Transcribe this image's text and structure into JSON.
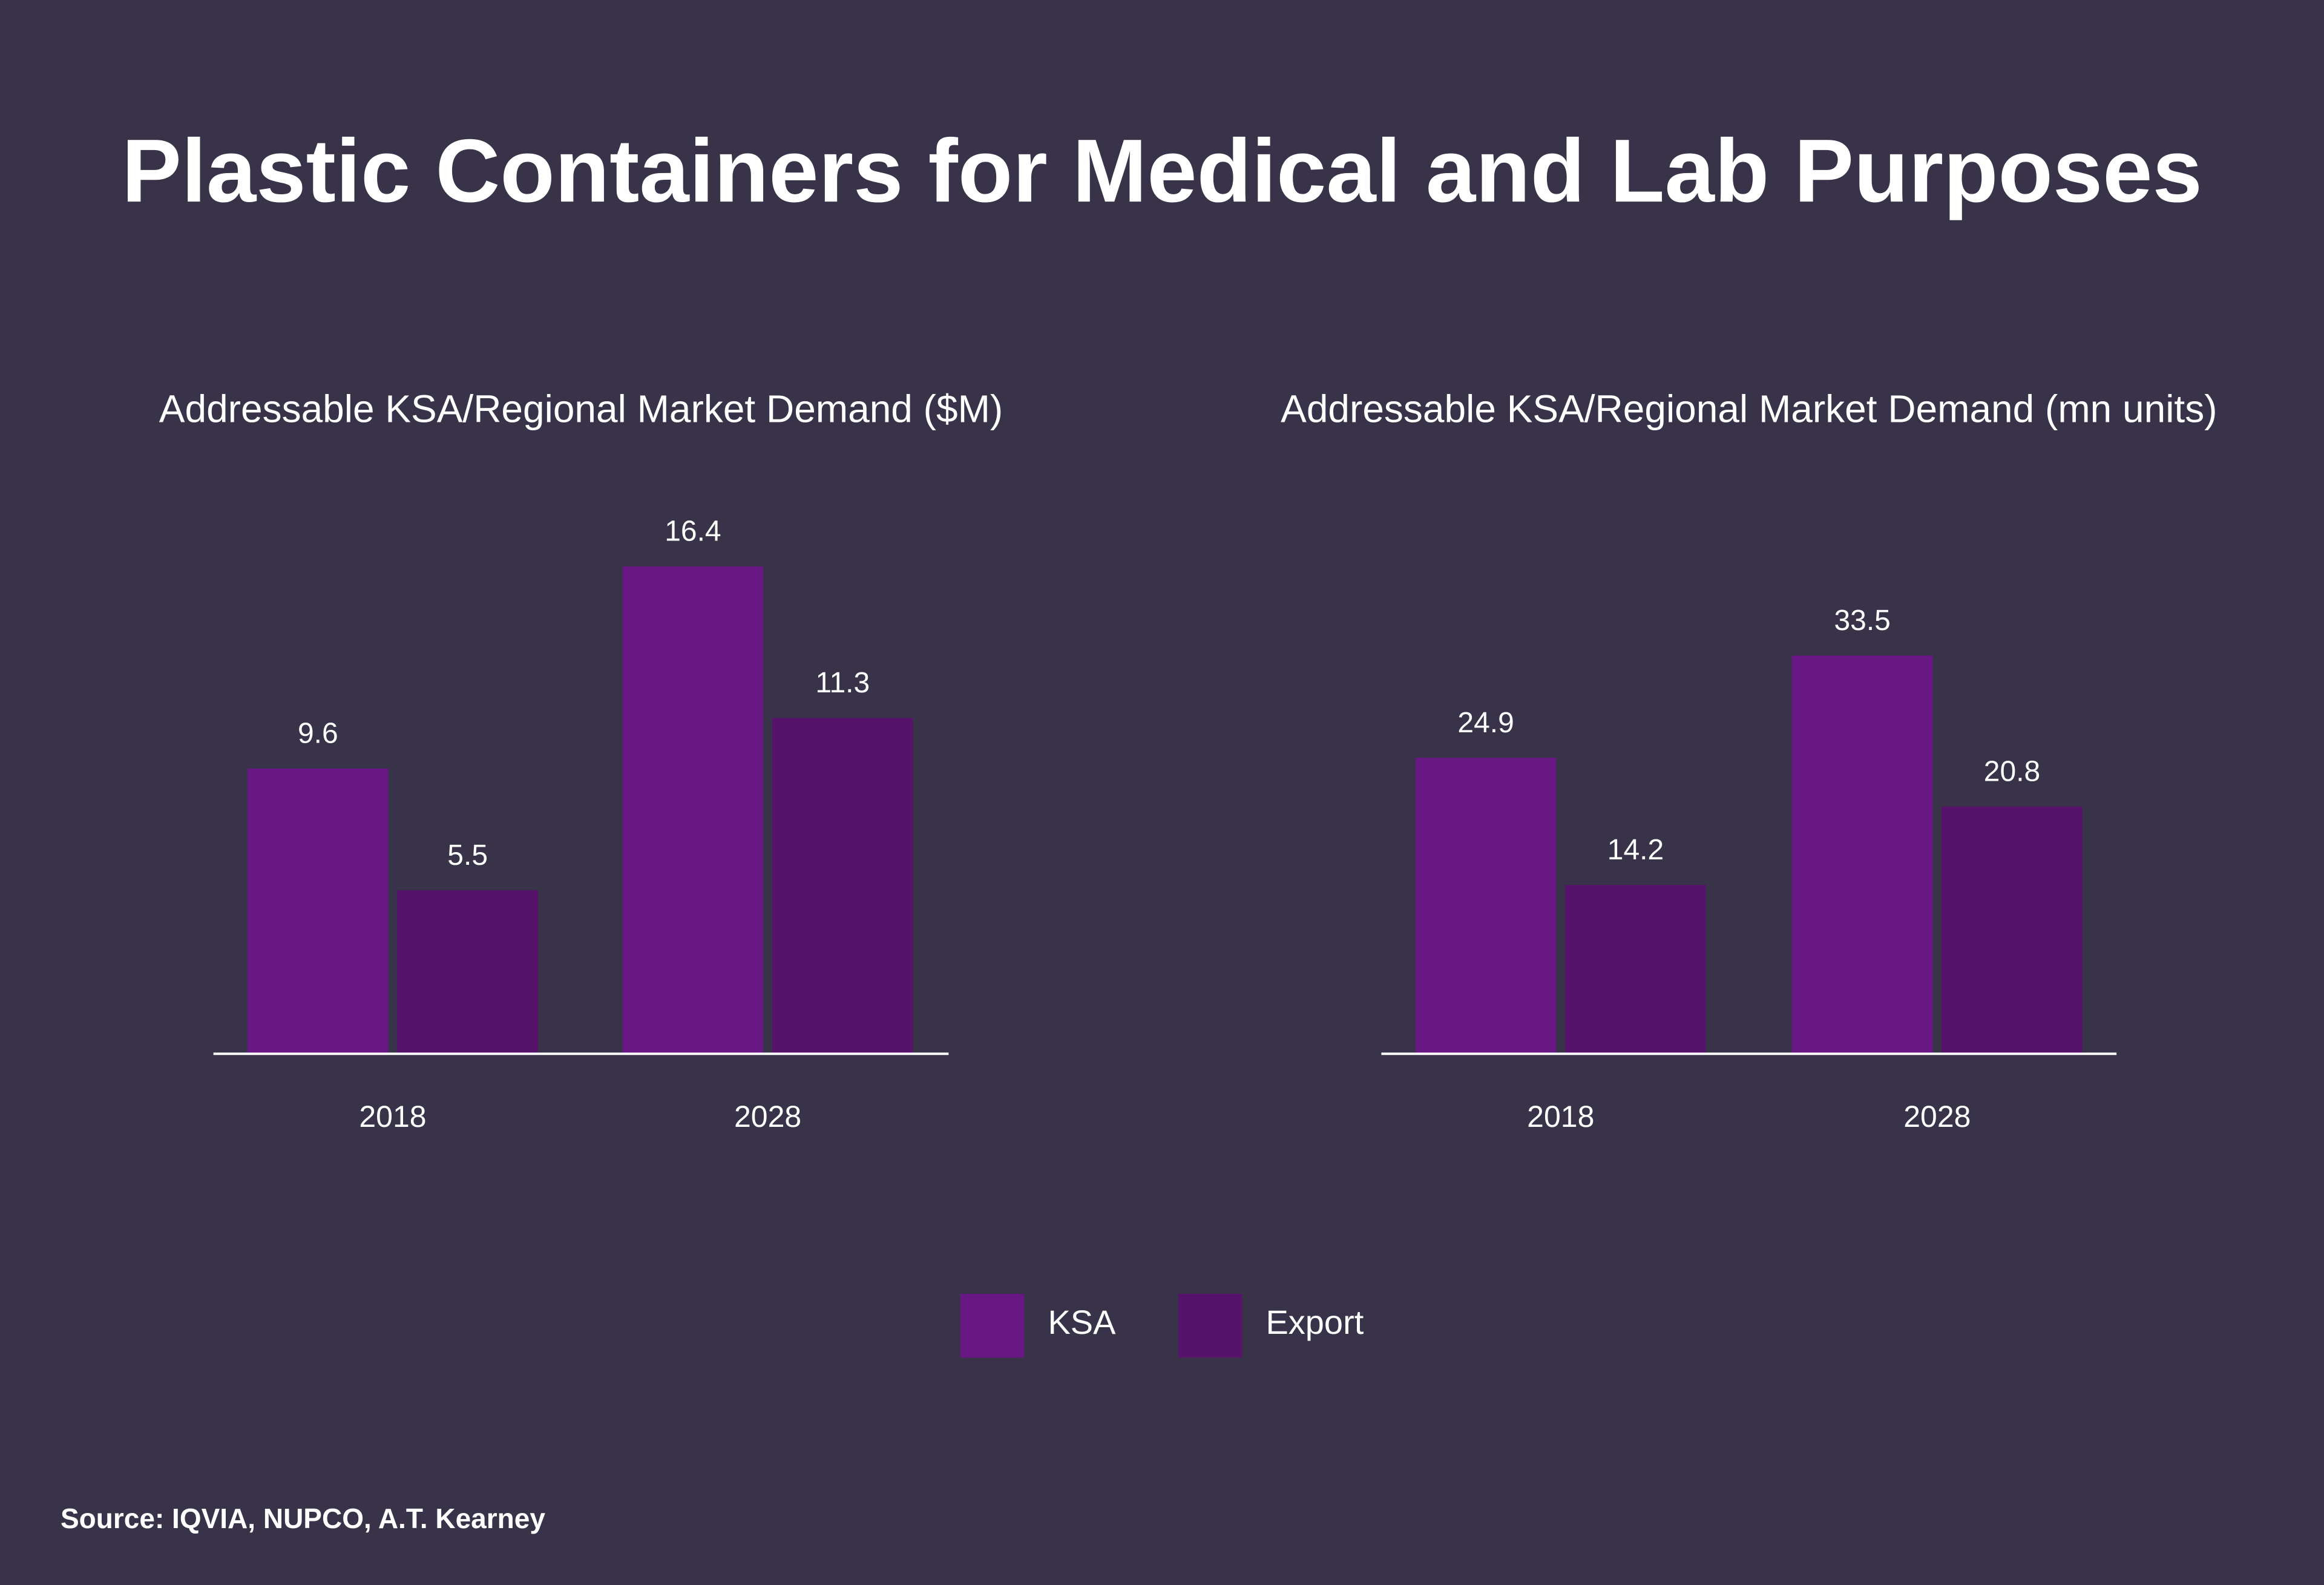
{
  "title": "Plastic Containers for Medical and Lab Purposes",
  "source": "Source: IQVIA, NUPCO, A.T. Kearney",
  "chart_data": [
    {
      "type": "bar",
      "title": "Addressable KSA/Regional Market Demand ($M)",
      "categories": [
        "2018",
        "2028"
      ],
      "series": [
        {
          "name": "KSA",
          "color": "#6a1786",
          "values": [
            9.6,
            16.4
          ]
        },
        {
          "name": "Export",
          "color": "#57126b",
          "values": [
            5.5,
            11.3
          ]
        }
      ],
      "ylim": [
        0,
        20
      ]
    },
    {
      "type": "bar",
      "title": "Addressable KSA/Regional Market Demand (mn units)",
      "categories": [
        "2018",
        "2028"
      ],
      "series": [
        {
          "name": "KSA",
          "color": "#6a1786",
          "values": [
            24.9,
            33.5
          ]
        },
        {
          "name": "Export",
          "color": "#57126b",
          "values": [
            14.2,
            20.8
          ]
        }
      ],
      "ylim": [
        0,
        50
      ]
    }
  ]
}
